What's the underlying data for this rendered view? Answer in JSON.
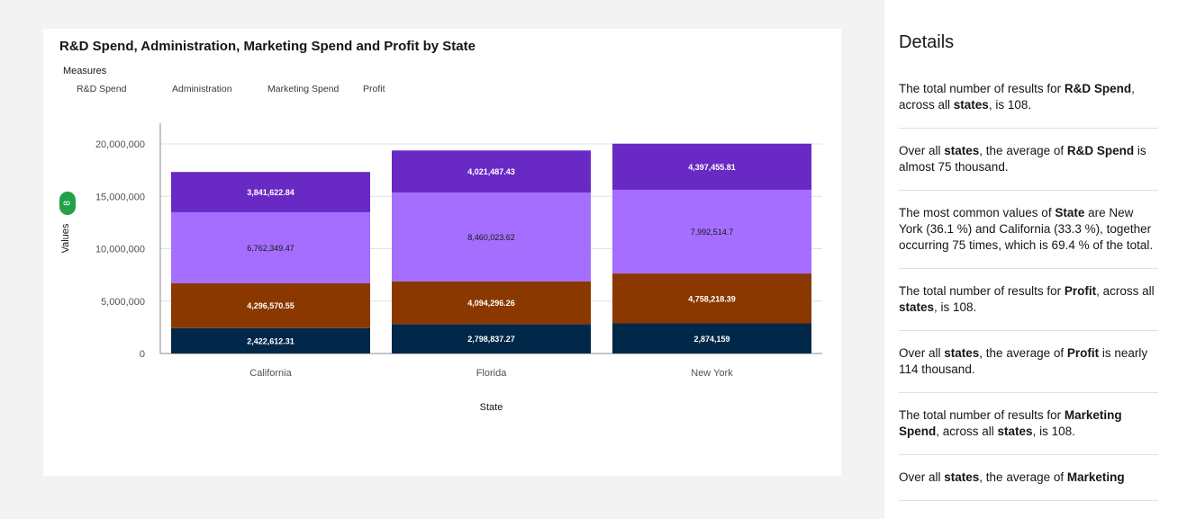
{
  "chart_data": {
    "type": "bar",
    "stacked": true,
    "title": "R&D Spend, Administration, Marketing Spend and Profit by State",
    "legend_title": "Measures",
    "xlabel": "State",
    "ylabel": "Values",
    "ylim": [
      0,
      20000000
    ],
    "yticks": [
      0,
      5000000,
      10000000,
      15000000,
      20000000
    ],
    "ytick_labels": [
      "0",
      "5,000,000",
      "10,000,000",
      "15,000,000",
      "20,000,000"
    ],
    "grid": true,
    "legend_position": "top-left",
    "badge": "8",
    "categories": [
      "California",
      "Florida",
      "New York"
    ],
    "series": [
      {
        "name": "R&D Spend",
        "color": "#012749",
        "label_color": "#ffffff",
        "values": [
          2422612.31,
          2798837.27,
          2874159
        ],
        "labels": [
          "2,422,612.31",
          "2,798,837.27",
          "2,874,159"
        ]
      },
      {
        "name": "Administration",
        "color": "#8a3800",
        "label_color": "#ffffff",
        "values": [
          4296570.55,
          4094296.26,
          4758218.39
        ],
        "labels": [
          "4,296,570.55",
          "4,094,296.26",
          "4,758,218.39"
        ]
      },
      {
        "name": "Marketing Spend",
        "color": "#a56eff",
        "label_color": "#161616",
        "values": [
          6762349.47,
          8460023.62,
          7992514.7
        ],
        "labels": [
          "6,762,349.47",
          "8,460,023.62",
          "7,992,514.7"
        ]
      },
      {
        "name": "Profit",
        "color": "#6929c4",
        "label_color": "#ffffff",
        "values": [
          3841622.84,
          4021487.43,
          4397455.81
        ],
        "labels": [
          "3,841,622.84",
          "4,021,487.43",
          "4,397,455.81"
        ]
      }
    ]
  },
  "details": {
    "title": "Details",
    "insights": [
      [
        {
          "t": "The total number of results for "
        },
        {
          "t": "R&D Spend",
          "b": true
        },
        {
          "t": ", across all "
        },
        {
          "t": "states",
          "b": true
        },
        {
          "t": ", is 108."
        }
      ],
      [
        {
          "t": "Over all "
        },
        {
          "t": "states",
          "b": true
        },
        {
          "t": ", the average of "
        },
        {
          "t": "R&D Spend",
          "b": true
        },
        {
          "t": " is almost 75 thousand."
        }
      ],
      [
        {
          "t": "The most common values of "
        },
        {
          "t": "State",
          "b": true
        },
        {
          "t": " are New York (36.1 %) and California (33.3 %), together occurring 75 times, which is 69.4 % of the total."
        }
      ],
      [
        {
          "t": "The total number of results for "
        },
        {
          "t": "Profit",
          "b": true
        },
        {
          "t": ", across all "
        },
        {
          "t": "states",
          "b": true
        },
        {
          "t": ", is 108."
        }
      ],
      [
        {
          "t": "Over all "
        },
        {
          "t": "states",
          "b": true
        },
        {
          "t": ", the average of "
        },
        {
          "t": "Profit",
          "b": true
        },
        {
          "t": " is nearly 114 thousand."
        }
      ],
      [
        {
          "t": "The total number of results for "
        },
        {
          "t": "Marketing Spend",
          "b": true
        },
        {
          "t": ", across all "
        },
        {
          "t": "states",
          "b": true
        },
        {
          "t": ", is 108."
        }
      ],
      [
        {
          "t": "Over all "
        },
        {
          "t": "states",
          "b": true
        },
        {
          "t": ", the average of "
        },
        {
          "t": "Marketing",
          "b": true
        }
      ]
    ]
  }
}
